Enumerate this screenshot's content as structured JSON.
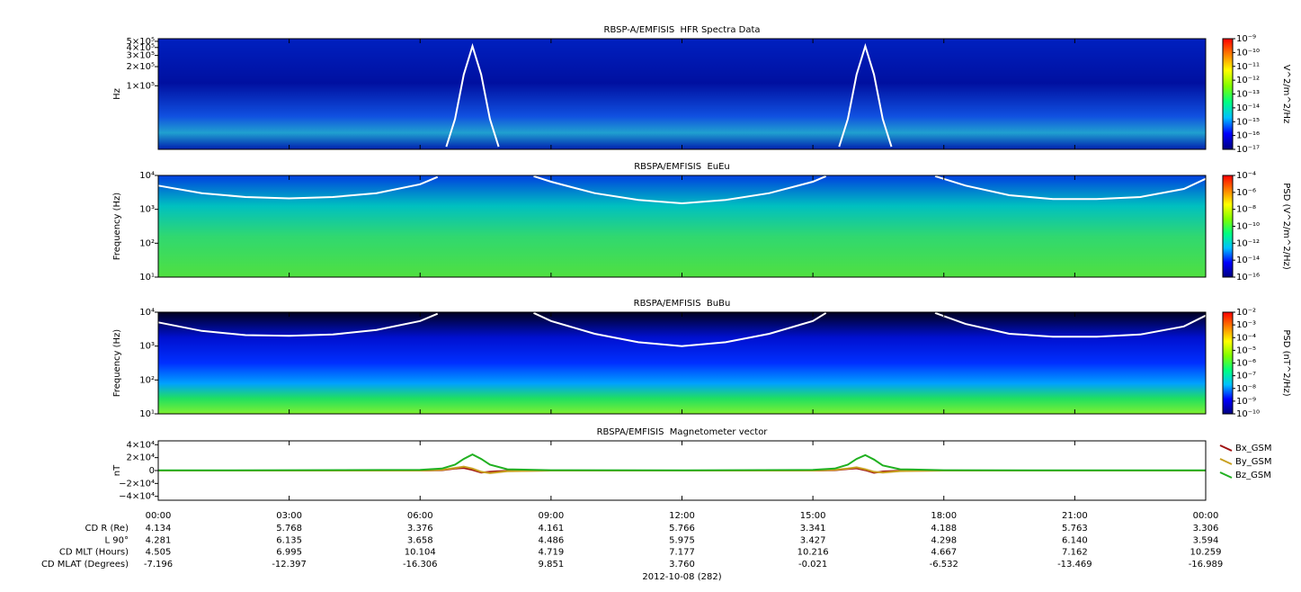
{
  "chart_data": [
    {
      "type": "spectrogram",
      "title": "RBSP-A/EMFISIS  HFR Spectra Data",
      "ylabel": "Hz",
      "ylog": true,
      "ylim": [
        10000,
        550000
      ],
      "yticks": [
        {
          "value": 500000,
          "label": "5×10⁵"
        },
        {
          "value": 400000,
          "label": "4×10⁵"
        },
        {
          "value": 300000,
          "label": "3×10⁵"
        },
        {
          "value": 200000,
          "label": "2×10⁵"
        },
        {
          "value": 100000,
          "label": "1×10⁵"
        }
      ],
      "x": [
        6.6,
        6.8,
        7,
        7.2,
        7.4,
        7.6,
        7.8,
        12,
        15.6,
        15.8,
        16,
        16.2,
        16.4,
        16.6,
        16.8
      ],
      "series": [
        {
          "color": "#ffffff",
          "values": [
            11000,
            30000,
            150000,
            420000,
            150000,
            30000,
            11000,
            null,
            11000,
            30000,
            150000,
            420000,
            150000,
            30000,
            11000
          ]
        }
      ],
      "zlabel": "V^2/m^2/Hz",
      "zlog": true,
      "zlim": [
        1e-17,
        1e-09
      ],
      "zticks": [
        {
          "value": 1e-09,
          "label": "10⁻⁹"
        },
        {
          "value": 1e-10,
          "label": "10⁻¹⁰"
        },
        {
          "value": 1e-11,
          "label": "10⁻¹¹"
        },
        {
          "value": 1e-12,
          "label": "10⁻¹²"
        },
        {
          "value": 1e-13,
          "label": "10⁻¹³"
        },
        {
          "value": 1e-14,
          "label": "10⁻¹⁴"
        },
        {
          "value": 1e-15,
          "label": "10⁻¹⁵"
        },
        {
          "value": 1e-16,
          "label": "10⁻¹⁶"
        },
        {
          "value": 1e-17,
          "label": "10⁻¹⁷"
        }
      ],
      "colormap": [
        "#000080",
        "#0000ff",
        "#00c0ff",
        "#00ff80",
        "#80ff00",
        "#ffff00",
        "#ff8000",
        "#ff0000"
      ]
    },
    {
      "type": "spectrogram",
      "title": "RBSPA/EMFISIS  EuEu",
      "ylabel": "Frequency (Hz)",
      "ylog": true,
      "ylim": [
        10,
        10000
      ],
      "yticks": [
        {
          "value": 10,
          "label": "10¹"
        },
        {
          "value": 100,
          "label": "10²"
        },
        {
          "value": 1000,
          "label": "10³"
        },
        {
          "value": 10000,
          "label": "10⁴"
        }
      ],
      "x": [
        0,
        1,
        2,
        3,
        4,
        5,
        6,
        6.4,
        7.5,
        8.6,
        9,
        10,
        11,
        12,
        13,
        14,
        15,
        15.3,
        16.5,
        17.8,
        18.5,
        19.5,
        20.5,
        21.5,
        22.5,
        23.5,
        24
      ],
      "series": [
        {
          "color": "#ffffff",
          "values": [
            5000,
            3000,
            2300,
            2100,
            2300,
            3000,
            5500,
            9000,
            null,
            9500,
            6500,
            3000,
            1900,
            1500,
            1900,
            3000,
            6500,
            9500,
            null,
            9500,
            5000,
            2600,
            2000,
            2000,
            2300,
            4000,
            8000
          ]
        }
      ],
      "zlabel": "PSD (V^2/m^2/Hz)",
      "zlog": true,
      "zlim": [
        1e-16,
        0.0001
      ],
      "zticks": [
        {
          "value": 0.0001,
          "label": "10⁻⁴"
        },
        {
          "value": 1e-06,
          "label": "10⁻⁶"
        },
        {
          "value": 1e-08,
          "label": "10⁻⁸"
        },
        {
          "value": 1e-10,
          "label": "10⁻¹⁰"
        },
        {
          "value": 1e-12,
          "label": "10⁻¹²"
        },
        {
          "value": 1e-14,
          "label": "10⁻¹⁴"
        },
        {
          "value": 1e-16,
          "label": "10⁻¹⁶"
        }
      ],
      "colormap": [
        "#000080",
        "#0000ff",
        "#00c0ff",
        "#00ff80",
        "#80ff00",
        "#ffff00",
        "#ff8000",
        "#ff0000"
      ]
    },
    {
      "type": "spectrogram",
      "title": "RBSPA/EMFISIS  BuBu",
      "ylabel": "Frequency (Hz)",
      "ylog": true,
      "ylim": [
        10,
        10000
      ],
      "yticks": [
        {
          "value": 10,
          "label": "10¹"
        },
        {
          "value": 100,
          "label": "10²"
        },
        {
          "value": 1000,
          "label": "10³"
        },
        {
          "value": 10000,
          "label": "10⁴"
        }
      ],
      "x": [
        0,
        1,
        2,
        3,
        4,
        5,
        6,
        6.4,
        7.5,
        8.6,
        9,
        10,
        11,
        12,
        13,
        14,
        15,
        15.3,
        16.5,
        17.8,
        18.5,
        19.5,
        20.5,
        21.5,
        22.5,
        23.5,
        24
      ],
      "series": [
        {
          "color": "#ffffff",
          "values": [
            5000,
            2800,
            2100,
            2000,
            2200,
            3000,
            5500,
            9000,
            null,
            9500,
            5500,
            2300,
            1300,
            1000,
            1300,
            2300,
            5500,
            9500,
            null,
            9500,
            4500,
            2300,
            1900,
            1900,
            2200,
            3800,
            8000
          ]
        }
      ],
      "zlabel": "PSD (nT^2/Hz)",
      "zlog": true,
      "zlim": [
        1e-10,
        0.01
      ],
      "zticks": [
        {
          "value": 0.01,
          "label": "10⁻²"
        },
        {
          "value": 0.001,
          "label": "10⁻³"
        },
        {
          "value": 0.0001,
          "label": "10⁻⁴"
        },
        {
          "value": 1e-05,
          "label": "10⁻⁵"
        },
        {
          "value": 1e-06,
          "label": "10⁻⁶"
        },
        {
          "value": 1e-07,
          "label": "10⁻⁷"
        },
        {
          "value": 1e-08,
          "label": "10⁻⁸"
        },
        {
          "value": 1e-09,
          "label": "10⁻⁹"
        },
        {
          "value": 1e-10,
          "label": "10⁻¹⁰"
        }
      ],
      "colormap": [
        "#000080",
        "#0000ff",
        "#00c0ff",
        "#00ff80",
        "#80ff00",
        "#ffff00",
        "#ff8000",
        "#ff0000"
      ]
    },
    {
      "type": "line",
      "title": "RBSPA/EMFISIS  Magnetometer vector",
      "ylabel": "nT",
      "ylim": [
        -46000,
        46000
      ],
      "yticks": [
        {
          "value": 40000,
          "label": "4×10⁴"
        },
        {
          "value": 20000,
          "label": "2×10⁴"
        },
        0,
        {
          "value": -20000,
          "label": "−2×10⁴"
        },
        {
          "value": -40000,
          "label": "−4×10⁴"
        }
      ],
      "x": [
        0,
        3,
        6,
        6.5,
        6.8,
        7,
        7.2,
        7.4,
        7.6,
        8,
        9,
        12,
        15,
        15.5,
        15.8,
        16,
        16.2,
        16.4,
        16.6,
        17,
        18,
        21,
        24
      ],
      "series": [
        {
          "name": "Bx_GSM",
          "color": "#a01010",
          "values": [
            0,
            0,
            0,
            500,
            3000,
            4000,
            1000,
            -3000,
            -2000,
            -300,
            0,
            0,
            0,
            500,
            2500,
            3500,
            500,
            -3500,
            -1500,
            -200,
            0,
            0,
            0
          ]
        },
        {
          "name": "By_GSM",
          "color": "#c8a020",
          "values": [
            0,
            0,
            0,
            1000,
            4000,
            6000,
            3000,
            -2000,
            -4000,
            -1000,
            0,
            0,
            0,
            1000,
            3000,
            5000,
            2000,
            -2000,
            -3000,
            -800,
            0,
            0,
            0
          ]
        },
        {
          "name": "Bz_GSM",
          "color": "#20b020",
          "values": [
            300,
            500,
            1000,
            3000,
            9000,
            18000,
            25000,
            18000,
            9000,
            2000,
            500,
            300,
            1000,
            3000,
            9000,
            18000,
            24000,
            17000,
            8000,
            2000,
            500,
            300,
            300
          ]
        }
      ],
      "xlim": [
        0,
        24
      ],
      "xticks": [
        {
          "value": 0,
          "label": "00:00"
        },
        {
          "value": 3,
          "label": "03:00"
        },
        {
          "value": 6,
          "label": "06:00"
        },
        {
          "value": 9,
          "label": "09:00"
        },
        {
          "value": 12,
          "label": "12:00"
        },
        {
          "value": 15,
          "label": "15:00"
        },
        {
          "value": 18,
          "label": "18:00"
        },
        {
          "value": 21,
          "label": "21:00"
        },
        {
          "value": 24,
          "label": "00:00"
        }
      ],
      "xlabel": "2012-10-08 (282)",
      "ephemeris": [
        {
          "label": "CD R (Re)",
          "values": [
            "4.134",
            "5.768",
            "3.376",
            "4.161",
            "5.766",
            "3.341",
            "4.188",
            "5.763",
            "3.306"
          ]
        },
        {
          "label": "L 90°",
          "values": [
            "4.281",
            "6.135",
            "3.658",
            "4.486",
            "5.975",
            "3.427",
            "4.298",
            "6.140",
            "3.594"
          ]
        },
        {
          "label": "CD MLT (Hours)",
          "values": [
            "4.505",
            "6.995",
            "10.104",
            "4.719",
            "7.177",
            "10.216",
            "4.667",
            "7.162",
            "10.259"
          ]
        },
        {
          "label": "CD MLAT (Degrees)",
          "values": [
            "-7.196",
            "-12.397",
            "-16.306",
            "9.851",
            "3.760",
            "-0.021",
            "-6.532",
            "-13.469",
            "-16.989"
          ]
        }
      ]
    }
  ]
}
